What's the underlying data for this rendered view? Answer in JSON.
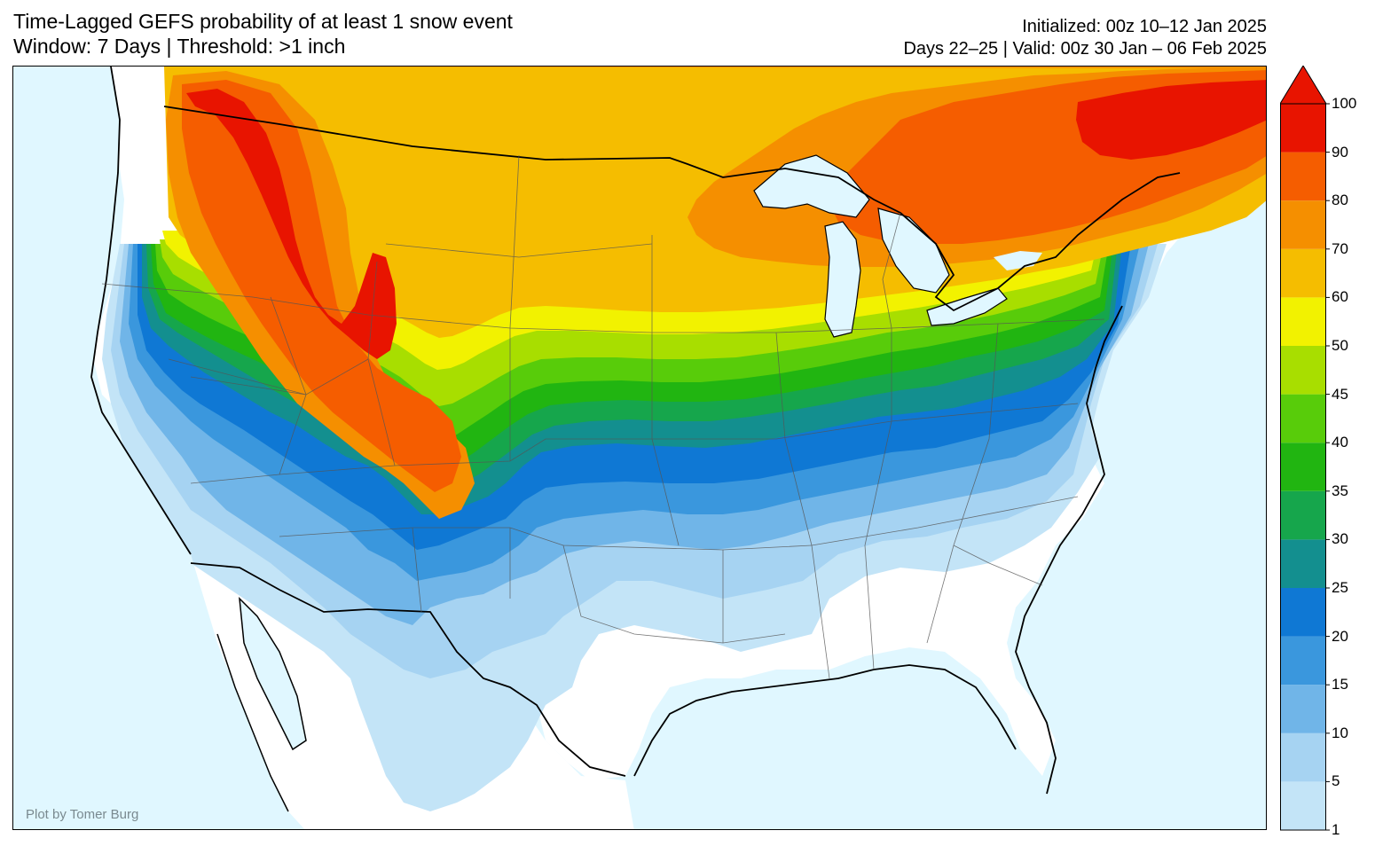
{
  "title": {
    "line1": "Time-Lagged GEFS probability of at least 1 snow event",
    "line2": "Window: 7 Days | Threshold: >1 inch"
  },
  "info": {
    "initialized": "Initialized: 00z 10–12 Jan 2025",
    "valid": "Days 22–25 | Valid: 00z 30 Jan – 06 Feb 2025"
  },
  "credit": "Plot by Tomer Burg",
  "colorbar": {
    "levels": [
      "1",
      "5",
      "10",
      "15",
      "20",
      "25",
      "30",
      "35",
      "40",
      "45",
      "50",
      "60",
      "70",
      "80",
      "90",
      "100"
    ],
    "colors": [
      "#c3e4f7",
      "#a6d3f2",
      "#70b5e8",
      "#3a97dd",
      "#0f78d4",
      "#138f8f",
      "#16a64c",
      "#21b511",
      "#58cc0a",
      "#a8de00",
      "#f2f200",
      "#f5bd00",
      "#f58f00",
      "#f55d00",
      "#e81400"
    ],
    "extend": "max"
  },
  "map": {
    "ocean_color": "#e0f7ff",
    "land_color": "#ffffff",
    "features": [
      "Great Lakes",
      "Atlantic Ocean",
      "Pacific Ocean",
      "Gulf of Mexico"
    ]
  }
}
